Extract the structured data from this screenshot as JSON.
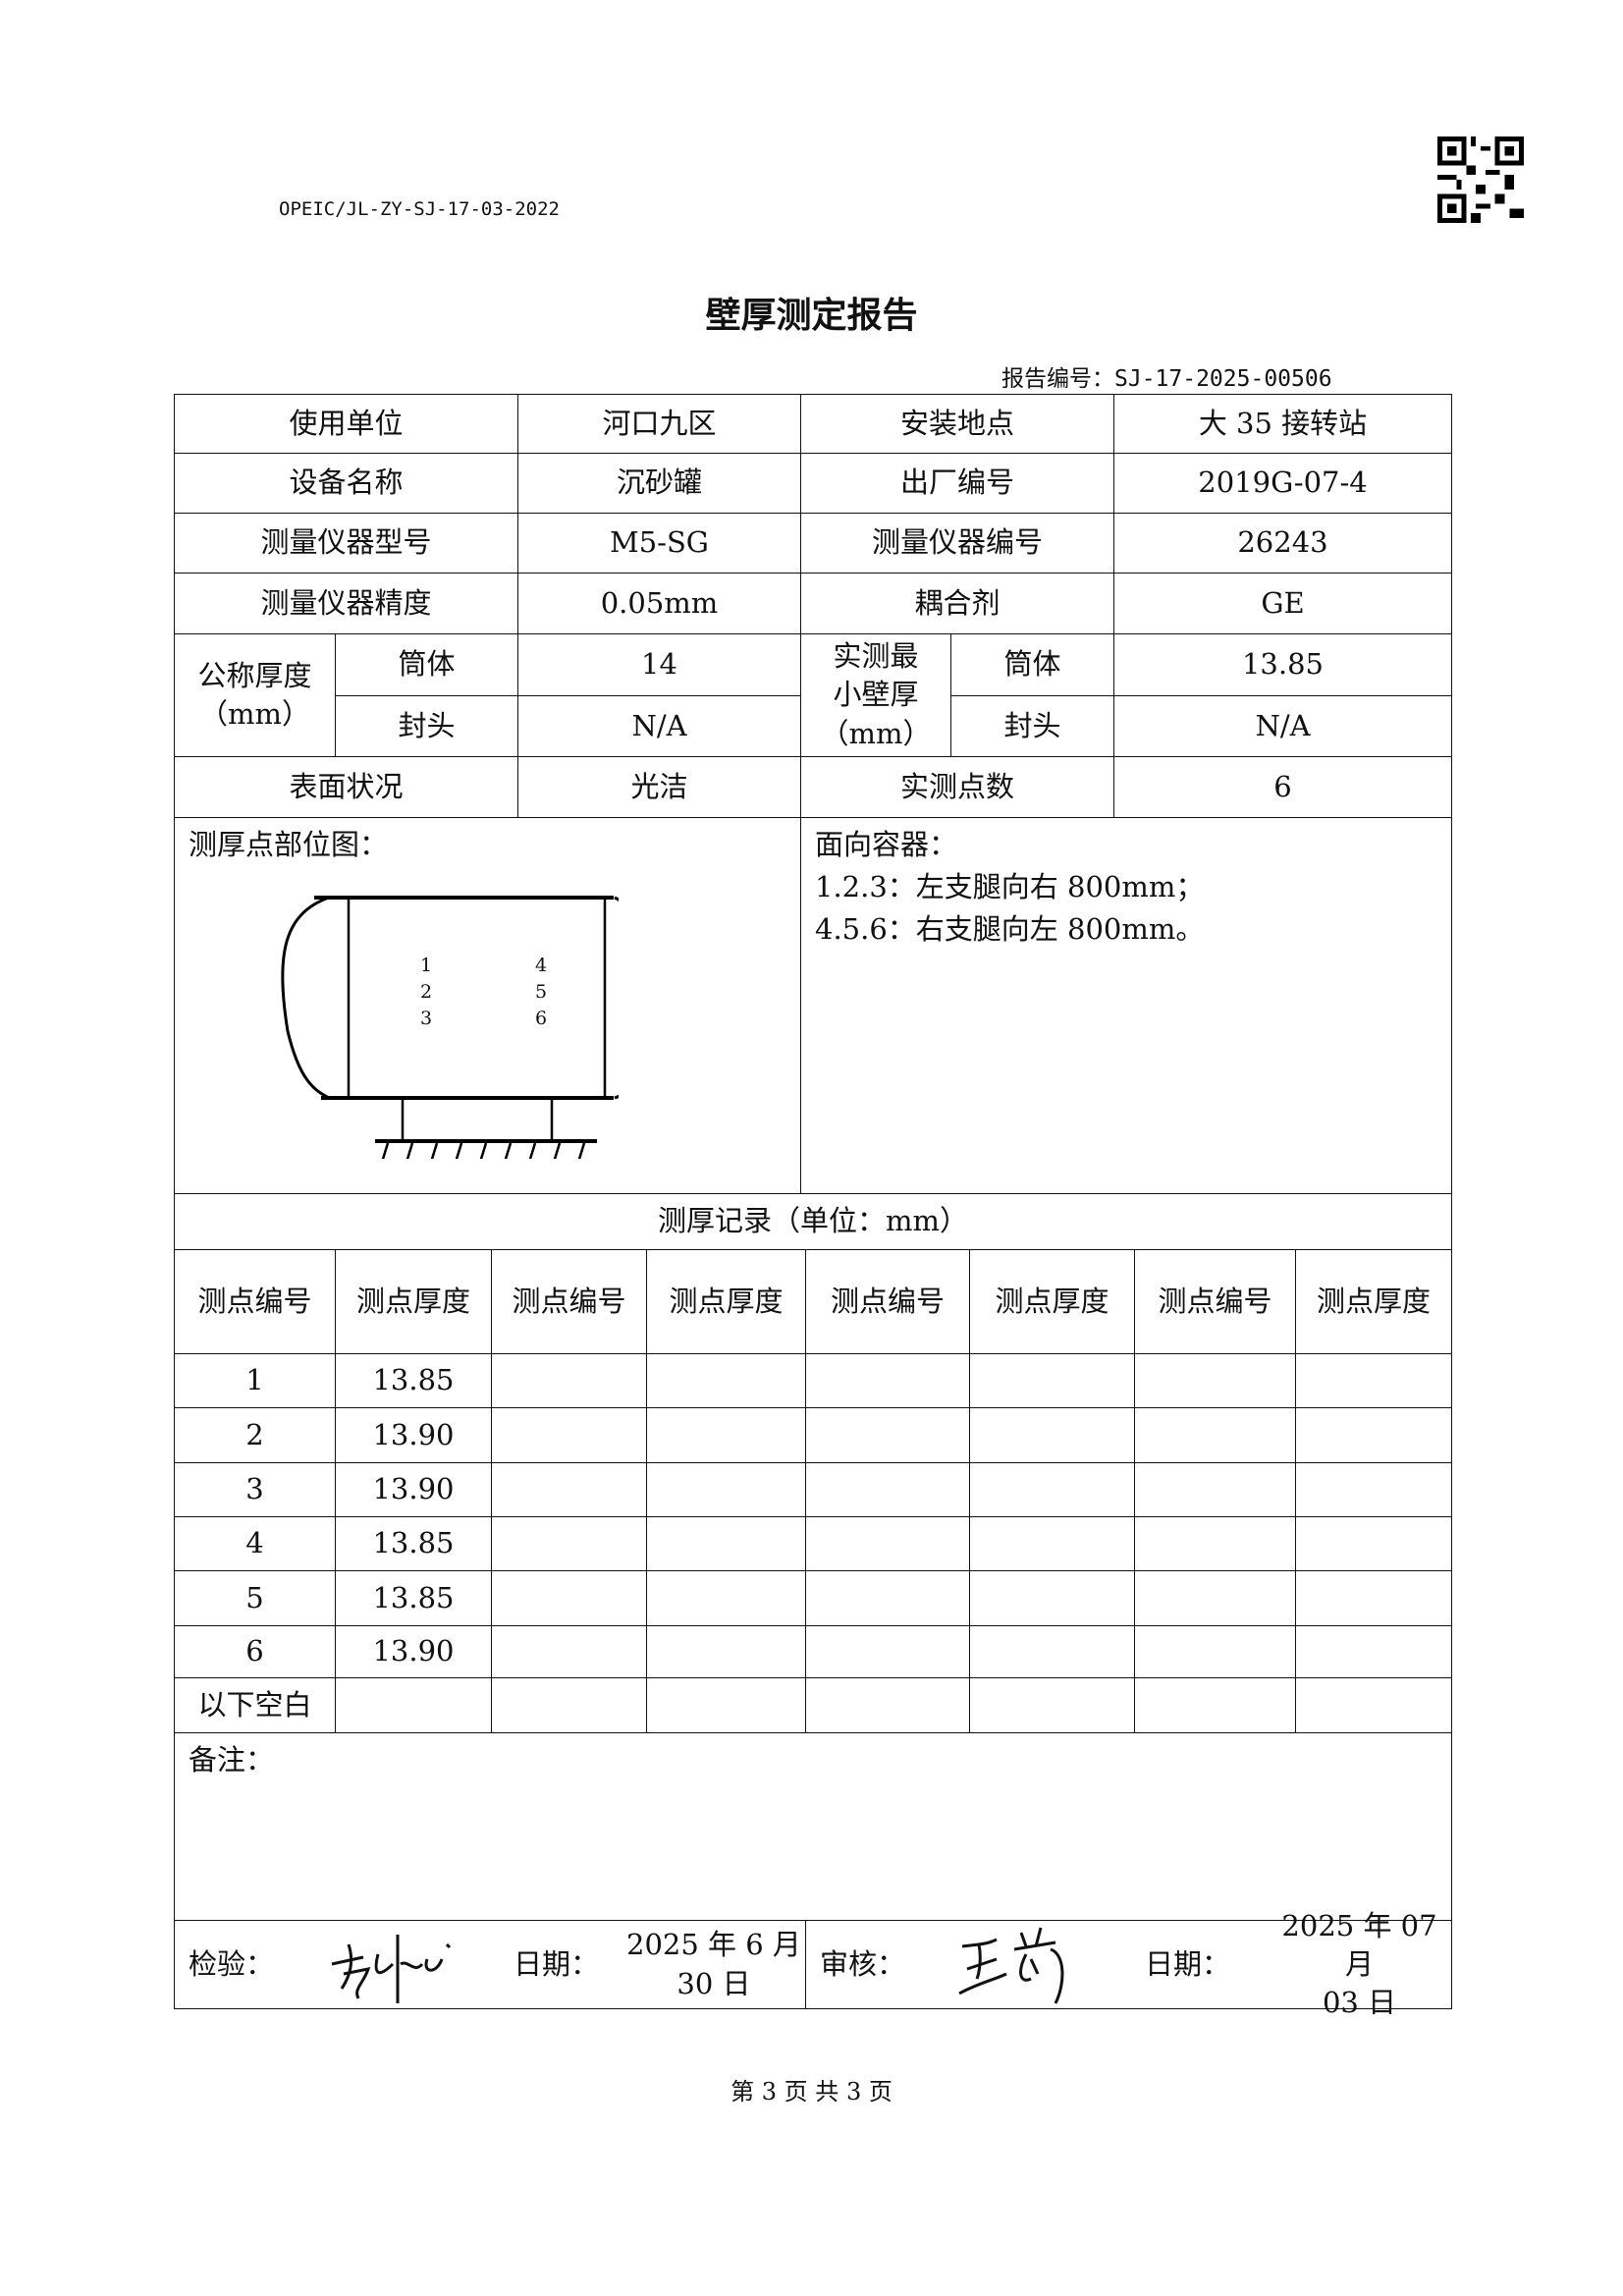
{
  "header": {
    "doc_code": "OPEIC/JL-ZY-SJ-17-03-2022",
    "title": "壁厚测定报告",
    "report_no_label": "报告编号：",
    "report_no": "SJ-17-2025-00506"
  },
  "info": {
    "user_unit_label": "使用单位",
    "user_unit": "河口九区",
    "install_site_label": "安装地点",
    "install_site": "大 35 接转站",
    "equipment_name_label": "设备名称",
    "equipment_name": "沉砂罐",
    "factory_no_label": "出厂编号",
    "factory_no": "2019G-07-4",
    "instrument_model_label": "测量仪器型号",
    "instrument_model": "M5-SG",
    "instrument_no_label": "测量仪器编号",
    "instrument_no": "26243",
    "instrument_accuracy_label": "测量仪器精度",
    "instrument_accuracy": "0.05mm",
    "couplant_label": "耦合剂",
    "couplant": "GE",
    "nominal_thickness_label": "公称厚度\n（mm）",
    "measured_min_label": "实测最\n小壁厚\n（mm）",
    "shell_label": "筒体",
    "head_label": "封头",
    "nominal_shell": "14",
    "nominal_head": "N/A",
    "measured_shell": "13.85",
    "measured_head": "N/A",
    "surface_label": "表面状况",
    "surface": "光洁",
    "points_count_label": "实测点数",
    "points_count": "6"
  },
  "diagram": {
    "label": "测厚点部位图：",
    "points_left": [
      "1",
      "2",
      "3"
    ],
    "points_right": [
      "4",
      "5",
      "6"
    ]
  },
  "orientation": {
    "label": "面向容器：",
    "lines": [
      "1.2.3：左支腿向右 800mm；",
      "4.5.6：右支腿向左 800mm。"
    ]
  },
  "records": {
    "title": "测厚记录（单位：mm）",
    "headers": [
      "测点编号",
      "测点厚度",
      "测点编号",
      "测点厚度",
      "测点编号",
      "测点厚度",
      "测点编号",
      "测点厚度"
    ],
    "rows": [
      [
        "1",
        "13.85"
      ],
      [
        "2",
        "13.90"
      ],
      [
        "3",
        "13.90"
      ],
      [
        "4",
        "13.85"
      ],
      [
        "5",
        "13.85"
      ],
      [
        "6",
        "13.90"
      ],
      [
        "以下空白",
        ""
      ]
    ]
  },
  "remarks_label": "备注：",
  "signoff": {
    "inspector_label": "检验：",
    "inspector_date_label": "日期：",
    "inspector_date": "2025 年 6 月\n30 日",
    "reviewer_label": "审核：",
    "reviewer_date_label": "日期：",
    "reviewer_date": "2025 年 07 月\n03 日"
  },
  "footer": {
    "page": "第 3 页 共 3 页"
  }
}
